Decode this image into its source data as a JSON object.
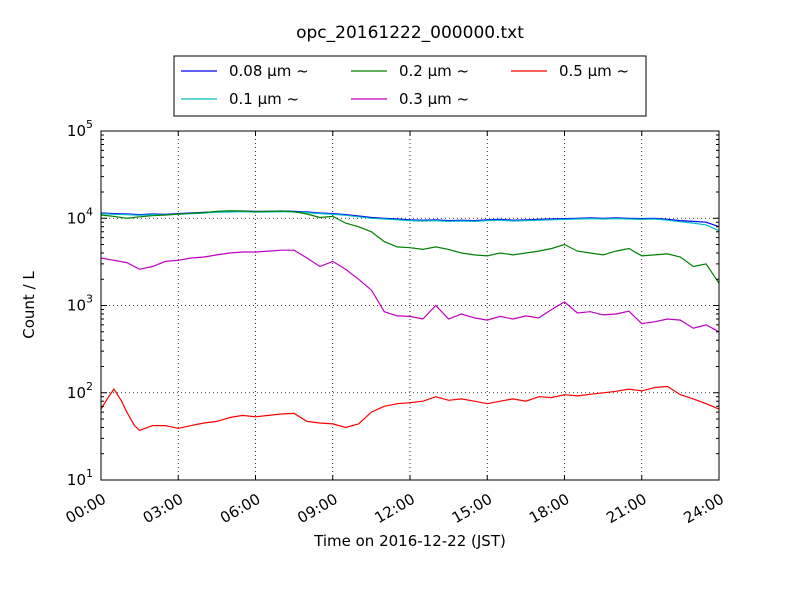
{
  "chart_data": {
    "type": "line",
    "title": "opc_20161222_000000.txt",
    "xlabel": "Time on 2016-12-22 (JST)",
    "ylabel": "Count / L",
    "yscale": "log",
    "xlim": [
      0,
      24
    ],
    "ylim": [
      10,
      100000
    ],
    "grid": true,
    "legend_position": "top, above plot, 3 columns",
    "x_ticks": [
      {
        "value": 0,
        "label": "00:00"
      },
      {
        "value": 3,
        "label": "03:00"
      },
      {
        "value": 6,
        "label": "06:00"
      },
      {
        "value": 9,
        "label": "09:00"
      },
      {
        "value": 12,
        "label": "12:00"
      },
      {
        "value": 15,
        "label": "15:00"
      },
      {
        "value": 18,
        "label": "18:00"
      },
      {
        "value": 21,
        "label": "21:00"
      },
      {
        "value": 24,
        "label": "24:00"
      }
    ],
    "y_ticks": [
      {
        "value": 10,
        "base": "10",
        "exp": "1"
      },
      {
        "value": 100,
        "base": "10",
        "exp": "2"
      },
      {
        "value": 1000,
        "base": "10",
        "exp": "3"
      },
      {
        "value": 10000,
        "base": "10",
        "exp": "4"
      },
      {
        "value": 100000,
        "base": "10",
        "exp": "5"
      }
    ],
    "series": [
      {
        "name": "0.08 μm ~",
        "color": "#0000ff",
        "points": [
          [
            0,
            11500
          ],
          [
            0.5,
            11300
          ],
          [
            1,
            11200
          ],
          [
            1.5,
            11000
          ],
          [
            2,
            11200
          ],
          [
            2.5,
            11100
          ],
          [
            3,
            11300
          ],
          [
            3.5,
            11500
          ],
          [
            4,
            11700
          ],
          [
            4.5,
            11900
          ],
          [
            5,
            12000
          ],
          [
            5.5,
            12100
          ],
          [
            6,
            12000
          ],
          [
            6.5,
            12000
          ],
          [
            7,
            12100
          ],
          [
            7.5,
            12000
          ],
          [
            8,
            11800
          ],
          [
            8.5,
            11500
          ],
          [
            9,
            11300
          ],
          [
            9.5,
            11000
          ],
          [
            10,
            10600
          ],
          [
            10.5,
            10200
          ],
          [
            11,
            10000
          ],
          [
            11.5,
            9800
          ],
          [
            12,
            9600
          ],
          [
            12.5,
            9500
          ],
          [
            13,
            9600
          ],
          [
            13.5,
            9400
          ],
          [
            14,
            9500
          ],
          [
            14.5,
            9400
          ],
          [
            15,
            9600
          ],
          [
            15.5,
            9700
          ],
          [
            16,
            9500
          ],
          [
            16.5,
            9600
          ],
          [
            17,
            9700
          ],
          [
            17.5,
            9800
          ],
          [
            18,
            9900
          ],
          [
            18.5,
            10000
          ],
          [
            19,
            10100
          ],
          [
            19.5,
            10000
          ],
          [
            20,
            10100
          ],
          [
            20.5,
            10000
          ],
          [
            21,
            9900
          ],
          [
            21.5,
            10000
          ],
          [
            22,
            9700
          ],
          [
            22.5,
            9400
          ],
          [
            23,
            9200
          ],
          [
            23.5,
            9000
          ],
          [
            24,
            8000
          ]
        ]
      },
      {
        "name": "0.1 μm ~",
        "color": "#00bfbf",
        "points": [
          [
            0,
            11300
          ],
          [
            0.5,
            11100
          ],
          [
            1,
            11000
          ],
          [
            1.5,
            10800
          ],
          [
            2,
            11000
          ],
          [
            2.5,
            10900
          ],
          [
            3,
            11100
          ],
          [
            3.5,
            11300
          ],
          [
            4,
            11500
          ],
          [
            4.5,
            11700
          ],
          [
            5,
            11800
          ],
          [
            5.5,
            11900
          ],
          [
            6,
            11800
          ],
          [
            6.5,
            11800
          ],
          [
            7,
            11900
          ],
          [
            7.5,
            11800
          ],
          [
            8,
            11600
          ],
          [
            8.5,
            11300
          ],
          [
            9,
            11100
          ],
          [
            9.5,
            10800
          ],
          [
            10,
            10400
          ],
          [
            10.5,
            10000
          ],
          [
            11,
            9800
          ],
          [
            11.5,
            9600
          ],
          [
            12,
            9400
          ],
          [
            12.5,
            9300
          ],
          [
            13,
            9400
          ],
          [
            13.5,
            9200
          ],
          [
            14,
            9300
          ],
          [
            14.5,
            9200
          ],
          [
            15,
            9400
          ],
          [
            15.5,
            9500
          ],
          [
            16,
            9300
          ],
          [
            16.5,
            9400
          ],
          [
            17,
            9500
          ],
          [
            17.5,
            9600
          ],
          [
            18,
            9700
          ],
          [
            18.5,
            9800
          ],
          [
            19,
            9900
          ],
          [
            19.5,
            9800
          ],
          [
            20,
            9900
          ],
          [
            20.5,
            9800
          ],
          [
            21,
            9700
          ],
          [
            21.5,
            9800
          ],
          [
            22,
            9500
          ],
          [
            22.5,
            9100
          ],
          [
            23,
            8800
          ],
          [
            23.5,
            8400
          ],
          [
            24,
            7200
          ]
        ]
      },
      {
        "name": "0.2 μm ~",
        "color": "#008000",
        "points": [
          [
            0,
            10900
          ],
          [
            0.5,
            10500
          ],
          [
            1,
            10000
          ],
          [
            1.5,
            10400
          ],
          [
            2,
            10700
          ],
          [
            2.5,
            10900
          ],
          [
            3,
            11200
          ],
          [
            3.5,
            11400
          ],
          [
            4,
            11600
          ],
          [
            4.5,
            12000
          ],
          [
            5,
            12200
          ],
          [
            5.5,
            12100
          ],
          [
            6,
            11900
          ],
          [
            6.5,
            12000
          ],
          [
            7,
            12100
          ],
          [
            7.5,
            11900
          ],
          [
            8,
            11200
          ],
          [
            8.5,
            10200
          ],
          [
            9,
            10500
          ],
          [
            9.5,
            8800
          ],
          [
            10,
            8000
          ],
          [
            10.5,
            7000
          ],
          [
            11,
            5400
          ],
          [
            11.5,
            4700
          ],
          [
            12,
            4600
          ],
          [
            12.5,
            4400
          ],
          [
            13,
            4700
          ],
          [
            13.5,
            4400
          ],
          [
            14,
            4000
          ],
          [
            14.5,
            3800
          ],
          [
            15,
            3700
          ],
          [
            15.5,
            4000
          ],
          [
            16,
            3800
          ],
          [
            16.5,
            4000
          ],
          [
            17,
            4200
          ],
          [
            17.5,
            4500
          ],
          [
            18,
            5000
          ],
          [
            18.5,
            4200
          ],
          [
            19,
            4000
          ],
          [
            19.5,
            3800
          ],
          [
            20,
            4200
          ],
          [
            20.5,
            4500
          ],
          [
            21,
            3700
          ],
          [
            21.5,
            3800
          ],
          [
            22,
            3900
          ],
          [
            22.5,
            3600
          ],
          [
            23,
            2800
          ],
          [
            23.5,
            3000
          ],
          [
            24,
            1800
          ]
        ]
      },
      {
        "name": "0.3 μm ~",
        "color": "#bf00bf",
        "points": [
          [
            0,
            3500
          ],
          [
            0.5,
            3300
          ],
          [
            1,
            3100
          ],
          [
            1.5,
            2600
          ],
          [
            2,
            2800
          ],
          [
            2.5,
            3200
          ],
          [
            3,
            3300
          ],
          [
            3.5,
            3500
          ],
          [
            4,
            3600
          ],
          [
            4.5,
            3800
          ],
          [
            5,
            4000
          ],
          [
            5.5,
            4100
          ],
          [
            6,
            4100
          ],
          [
            6.5,
            4200
          ],
          [
            7,
            4300
          ],
          [
            7.5,
            4300
          ],
          [
            8,
            3500
          ],
          [
            8.5,
            2800
          ],
          [
            9,
            3200
          ],
          [
            9.5,
            2600
          ],
          [
            10,
            2000
          ],
          [
            10.5,
            1500
          ],
          [
            11,
            850
          ],
          [
            11.5,
            760
          ],
          [
            12,
            750
          ],
          [
            12.5,
            700
          ],
          [
            13,
            1000
          ],
          [
            13.5,
            700
          ],
          [
            14,
            800
          ],
          [
            14.5,
            720
          ],
          [
            15,
            680
          ],
          [
            15.5,
            750
          ],
          [
            16,
            700
          ],
          [
            16.5,
            760
          ],
          [
            17,
            720
          ],
          [
            17.5,
            900
          ],
          [
            18,
            1100
          ],
          [
            18.5,
            820
          ],
          [
            19,
            850
          ],
          [
            19.5,
            780
          ],
          [
            20,
            800
          ],
          [
            20.5,
            860
          ],
          [
            21,
            620
          ],
          [
            21.5,
            650
          ],
          [
            22,
            700
          ],
          [
            22.5,
            680
          ],
          [
            23,
            550
          ],
          [
            23.5,
            600
          ],
          [
            24,
            500
          ]
        ]
      },
      {
        "name": "0.5 μm ~",
        "color": "#ff0000",
        "points": [
          [
            0,
            65
          ],
          [
            0.3,
            90
          ],
          [
            0.5,
            110
          ],
          [
            0.8,
            80
          ],
          [
            1,
            60
          ],
          [
            1.3,
            42
          ],
          [
            1.5,
            37
          ],
          [
            2,
            42
          ],
          [
            2.5,
            42
          ],
          [
            3,
            39
          ],
          [
            3.5,
            42
          ],
          [
            4,
            45
          ],
          [
            4.5,
            47
          ],
          [
            5,
            52
          ],
          [
            5.5,
            55
          ],
          [
            6,
            53
          ],
          [
            6.5,
            55
          ],
          [
            7,
            57
          ],
          [
            7.5,
            58
          ],
          [
            8,
            47
          ],
          [
            8.5,
            45
          ],
          [
            9,
            44
          ],
          [
            9.5,
            40
          ],
          [
            10,
            44
          ],
          [
            10.5,
            60
          ],
          [
            11,
            70
          ],
          [
            11.5,
            75
          ],
          [
            12,
            77
          ],
          [
            12.5,
            80
          ],
          [
            13,
            90
          ],
          [
            13.5,
            82
          ],
          [
            14,
            85
          ],
          [
            14.5,
            80
          ],
          [
            15,
            75
          ],
          [
            15.5,
            80
          ],
          [
            16,
            85
          ],
          [
            16.5,
            80
          ],
          [
            17,
            90
          ],
          [
            17.5,
            88
          ],
          [
            18,
            95
          ],
          [
            18.5,
            92
          ],
          [
            19,
            96
          ],
          [
            19.5,
            100
          ],
          [
            20,
            104
          ],
          [
            20.5,
            110
          ],
          [
            21,
            105
          ],
          [
            21.5,
            115
          ],
          [
            22,
            118
          ],
          [
            22.5,
            95
          ],
          [
            23,
            85
          ],
          [
            23.5,
            75
          ],
          [
            24,
            65
          ]
        ]
      }
    ]
  }
}
